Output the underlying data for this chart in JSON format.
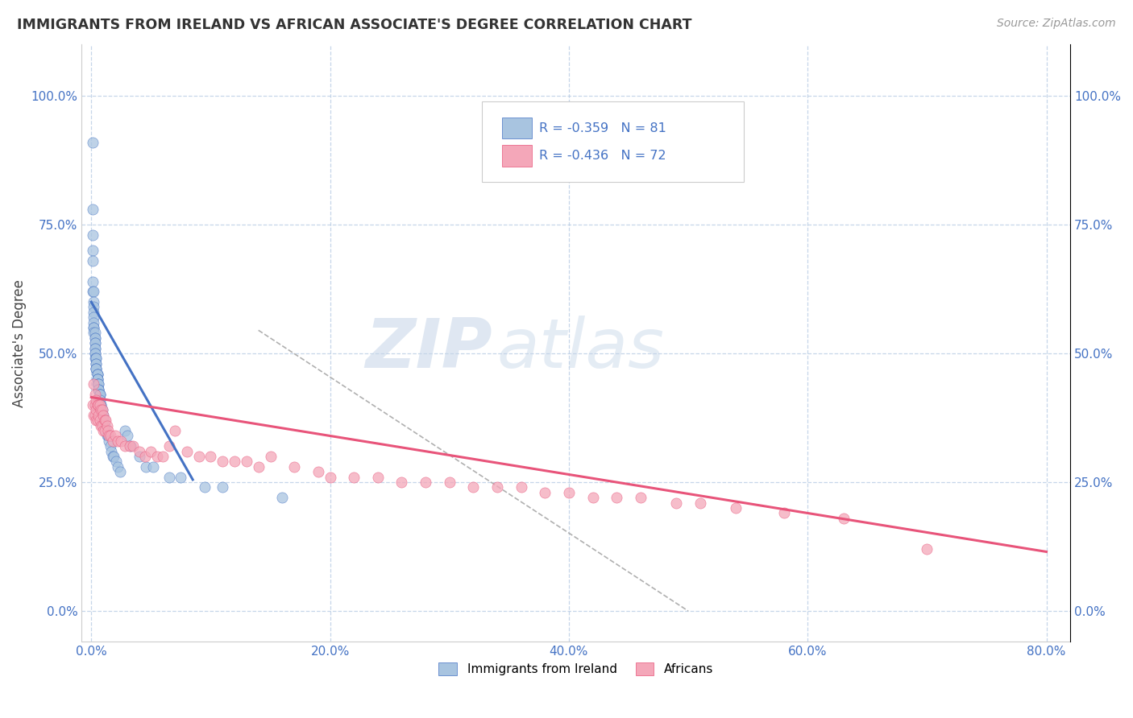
{
  "title": "IMMIGRANTS FROM IRELAND VS AFRICAN ASSOCIATE'S DEGREE CORRELATION CHART",
  "source": "Source: ZipAtlas.com",
  "xlabel_ticks": [
    "0.0%",
    "20.0%",
    "40.0%",
    "60.0%",
    "80.0%"
  ],
  "ylabel_ticks": [
    "0.0%",
    "25.0%",
    "50.0%",
    "75.0%",
    "100.0%"
  ],
  "xlabel_tick_vals": [
    0.0,
    0.2,
    0.4,
    0.6,
    0.8
  ],
  "ylabel_tick_vals": [
    0.0,
    0.25,
    0.5,
    0.75,
    1.0
  ],
  "xlim": [
    -0.008,
    0.82
  ],
  "ylim": [
    -0.06,
    1.1
  ],
  "ylabel": "Associate's Degree",
  "legend_label1": "Immigrants from Ireland",
  "legend_label2": "Africans",
  "R1": "-0.359",
  "N1": "81",
  "R2": "-0.436",
  "N2": "72",
  "color1": "#a8c4e0",
  "color2": "#f4a7b9",
  "line_color1": "#4472c4",
  "line_color2": "#e8547a",
  "watermark_zip": "ZIP",
  "watermark_atlas": "atlas",
  "blue_line_x0": 0.0,
  "blue_line_y0": 0.6,
  "blue_line_x1": 0.085,
  "blue_line_y1": 0.255,
  "pink_line_x0": 0.0,
  "pink_line_y0": 0.415,
  "pink_line_x1": 0.8,
  "pink_line_y1": 0.115,
  "dash_line_x0": 0.14,
  "dash_line_y0": 0.545,
  "dash_line_x1": 0.5,
  "dash_line_y1": 0.0,
  "blue_data_x": [
    0.001,
    0.001,
    0.001,
    0.001,
    0.001,
    0.001,
    0.001,
    0.002,
    0.002,
    0.002,
    0.002,
    0.002,
    0.002,
    0.002,
    0.002,
    0.002,
    0.003,
    0.003,
    0.003,
    0.003,
    0.003,
    0.003,
    0.003,
    0.003,
    0.003,
    0.003,
    0.004,
    0.004,
    0.004,
    0.004,
    0.004,
    0.004,
    0.004,
    0.005,
    0.005,
    0.005,
    0.005,
    0.005,
    0.005,
    0.005,
    0.006,
    0.006,
    0.006,
    0.006,
    0.006,
    0.007,
    0.007,
    0.007,
    0.007,
    0.007,
    0.008,
    0.008,
    0.008,
    0.009,
    0.009,
    0.01,
    0.01,
    0.01,
    0.011,
    0.012,
    0.013,
    0.014,
    0.015,
    0.016,
    0.017,
    0.018,
    0.019,
    0.021,
    0.022,
    0.024,
    0.028,
    0.03,
    0.033,
    0.04,
    0.046,
    0.052,
    0.065,
    0.075,
    0.095,
    0.11,
    0.16
  ],
  "blue_data_y": [
    0.91,
    0.78,
    0.73,
    0.7,
    0.68,
    0.64,
    0.62,
    0.62,
    0.6,
    0.59,
    0.58,
    0.57,
    0.56,
    0.55,
    0.55,
    0.54,
    0.54,
    0.53,
    0.53,
    0.52,
    0.52,
    0.51,
    0.51,
    0.5,
    0.5,
    0.49,
    0.49,
    0.49,
    0.48,
    0.48,
    0.47,
    0.47,
    0.47,
    0.46,
    0.46,
    0.46,
    0.45,
    0.45,
    0.45,
    0.44,
    0.44,
    0.44,
    0.43,
    0.43,
    0.43,
    0.42,
    0.42,
    0.42,
    0.41,
    0.4,
    0.4,
    0.4,
    0.39,
    0.39,
    0.38,
    0.38,
    0.37,
    0.37,
    0.36,
    0.35,
    0.34,
    0.34,
    0.33,
    0.32,
    0.31,
    0.3,
    0.3,
    0.29,
    0.28,
    0.27,
    0.35,
    0.34,
    0.32,
    0.3,
    0.28,
    0.28,
    0.26,
    0.26,
    0.24,
    0.24,
    0.22
  ],
  "pink_data_x": [
    0.001,
    0.002,
    0.002,
    0.003,
    0.003,
    0.003,
    0.004,
    0.004,
    0.004,
    0.005,
    0.005,
    0.006,
    0.006,
    0.007,
    0.007,
    0.008,
    0.008,
    0.009,
    0.009,
    0.01,
    0.01,
    0.011,
    0.011,
    0.012,
    0.013,
    0.014,
    0.015,
    0.016,
    0.018,
    0.02,
    0.022,
    0.025,
    0.028,
    0.032,
    0.035,
    0.04,
    0.045,
    0.05,
    0.055,
    0.06,
    0.065,
    0.07,
    0.08,
    0.09,
    0.1,
    0.11,
    0.12,
    0.13,
    0.14,
    0.15,
    0.17,
    0.19,
    0.2,
    0.22,
    0.24,
    0.26,
    0.28,
    0.3,
    0.32,
    0.34,
    0.36,
    0.38,
    0.4,
    0.42,
    0.44,
    0.46,
    0.49,
    0.51,
    0.54,
    0.58,
    0.63,
    0.7
  ],
  "pink_data_y": [
    0.4,
    0.44,
    0.38,
    0.42,
    0.4,
    0.38,
    0.41,
    0.39,
    0.37,
    0.4,
    0.37,
    0.4,
    0.38,
    0.4,
    0.37,
    0.39,
    0.36,
    0.39,
    0.36,
    0.38,
    0.35,
    0.37,
    0.35,
    0.37,
    0.36,
    0.35,
    0.34,
    0.34,
    0.33,
    0.34,
    0.33,
    0.33,
    0.32,
    0.32,
    0.32,
    0.31,
    0.3,
    0.31,
    0.3,
    0.3,
    0.32,
    0.35,
    0.31,
    0.3,
    0.3,
    0.29,
    0.29,
    0.29,
    0.28,
    0.3,
    0.28,
    0.27,
    0.26,
    0.26,
    0.26,
    0.25,
    0.25,
    0.25,
    0.24,
    0.24,
    0.24,
    0.23,
    0.23,
    0.22,
    0.22,
    0.22,
    0.21,
    0.21,
    0.2,
    0.19,
    0.18,
    0.12
  ]
}
